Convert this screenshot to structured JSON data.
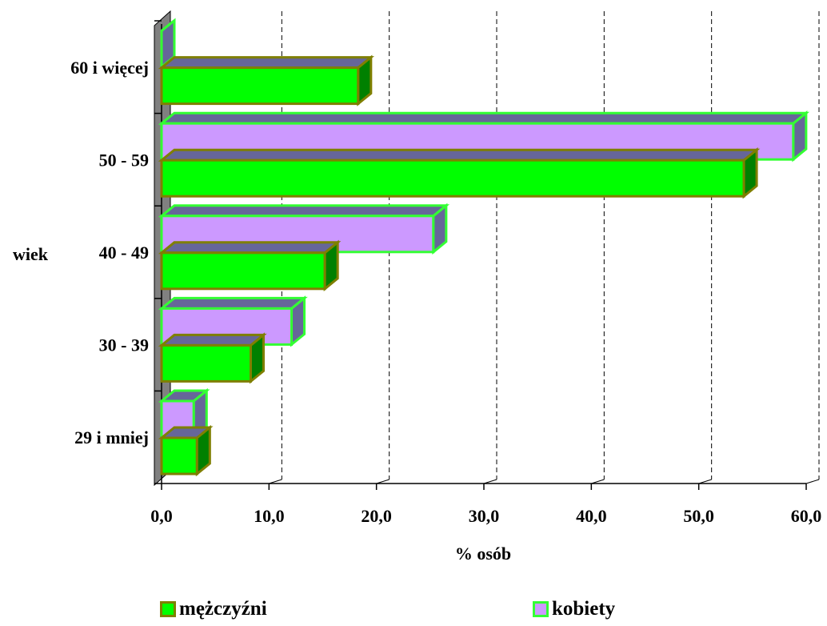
{
  "chart_data": {
    "type": "bar",
    "orientation": "horizontal",
    "categories": [
      "29 i mniej",
      "30 - 39",
      "40 - 49",
      "50 - 59",
      "60 i więcej"
    ],
    "series": [
      {
        "name": "mężczyźni",
        "values": [
          3.3,
          8.3,
          15.2,
          54.2,
          18.3
        ],
        "color": "#00ff00",
        "border": "#7f7f00"
      },
      {
        "name": "kobiety",
        "values": [
          3.0,
          12.1,
          25.3,
          58.8,
          0.0
        ],
        "color": "#cc99ff",
        "border": "#33ff33"
      }
    ],
    "xlabel": "% osób",
    "ylabel": "wiek",
    "xlim": [
      0,
      60
    ],
    "xticks": [
      "0,0",
      "10,0",
      "20,0",
      "30,0",
      "40,0",
      "50,0",
      "60,0"
    ],
    "grid": "vertical dashed",
    "legend_position": "bottom",
    "side_face_color": "#666699"
  }
}
